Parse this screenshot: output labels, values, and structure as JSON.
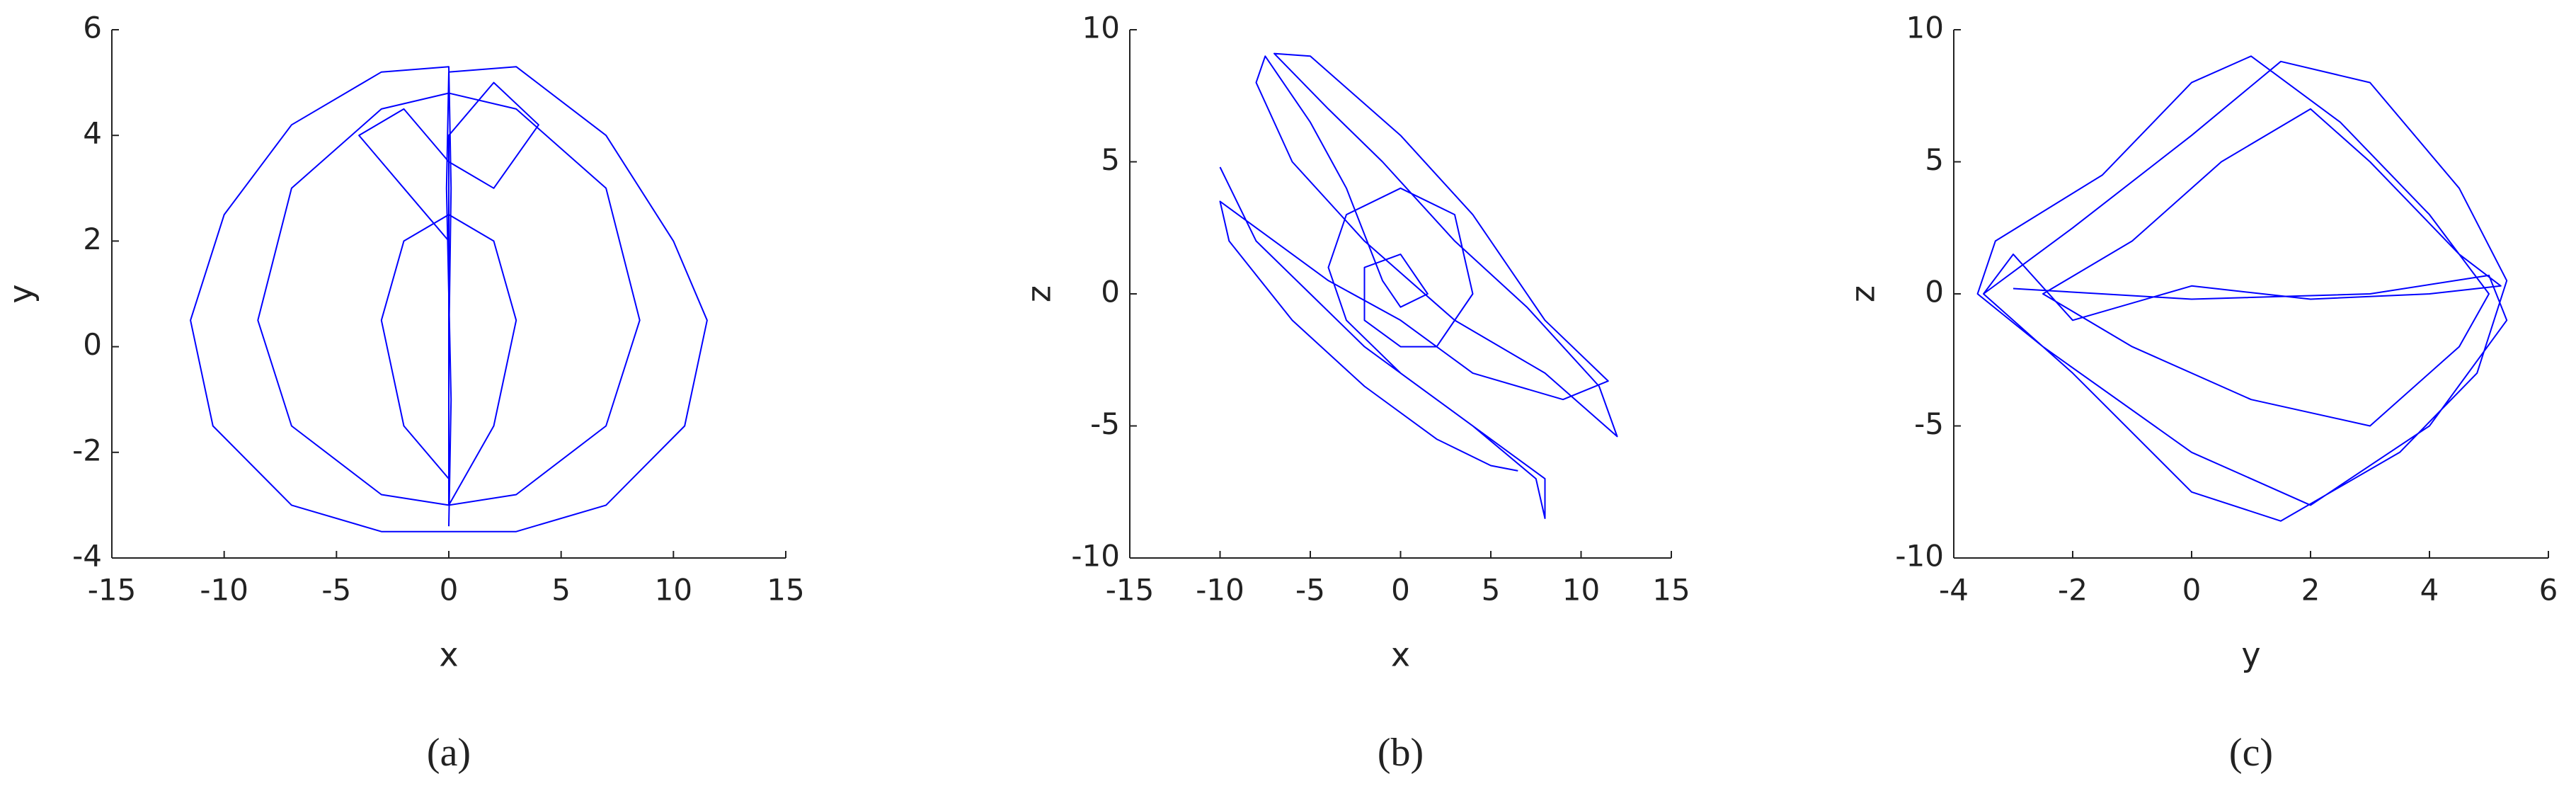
{
  "chart_data": [
    {
      "type": "line",
      "xlabel": "x",
      "ylabel": "y",
      "caption": "(a)",
      "xlim": [
        -15,
        15
      ],
      "xticks": [
        -15,
        -10,
        -5,
        0,
        5,
        10,
        15
      ],
      "ylim": [
        -4,
        6
      ],
      "yticks": [
        -4,
        -2,
        0,
        2,
        4,
        6
      ],
      "series": [
        {
          "color": "#0000ff",
          "x": [
            0,
            0.1,
            0,
            -0.1,
            0,
            3,
            7,
            10,
            11.5,
            10.5,
            7,
            3,
            0,
            -3,
            -7,
            -10.5,
            -11.5,
            -10,
            -7,
            -3,
            0,
            0.1,
            0,
            0,
            3,
            7,
            8.5,
            7,
            3,
            0,
            -3,
            -7,
            -8.5,
            -7,
            -3,
            0,
            2,
            3,
            2,
            0,
            -2,
            -3,
            -2,
            0,
            0,
            0,
            2,
            4,
            2,
            0,
            -2,
            -4,
            -2,
            0
          ],
          "values": [
            -3.4,
            -1,
            1,
            3,
            5.2,
            5.3,
            4,
            2,
            0.5,
            -1.5,
            -3,
            -3.5,
            -3.5,
            -3.5,
            -3,
            -1.5,
            0.5,
            2.5,
            4.2,
            5.2,
            5.3,
            3,
            0,
            -3,
            -2.8,
            -1.5,
            0.5,
            3,
            4.5,
            4.8,
            4.5,
            3,
            0.5,
            -1.5,
            -2.8,
            -3,
            -1.5,
            0.5,
            2,
            2.5,
            2,
            0.5,
            -1.5,
            -2.5,
            1,
            4,
            5,
            4.2,
            3,
            3.5,
            4.5,
            4,
            3,
            2
          ]
        }
      ]
    },
    {
      "type": "line",
      "xlabel": "x",
      "ylabel": "z",
      "caption": "(b)",
      "xlim": [
        -15,
        15
      ],
      "xticks": [
        -15,
        -10,
        -5,
        0,
        5,
        10,
        15
      ],
      "ylim": [
        -10,
        10
      ],
      "yticks": [
        -10,
        -5,
        0,
        5,
        10
      ],
      "series": [
        {
          "color": "#0000ff",
          "x": [
            -10,
            -8,
            -5,
            -2,
            2,
            6,
            8,
            8,
            7.5,
            4,
            0,
            -3,
            -4,
            -3,
            0,
            3,
            4,
            2,
            0,
            -2,
            -2,
            0,
            1.5,
            0,
            -1,
            -3,
            -5,
            -7.5,
            -8,
            -6,
            -2,
            3,
            8,
            12,
            11,
            7,
            3,
            -1,
            -4,
            -7,
            -5,
            0,
            4,
            8,
            11.5,
            9,
            4,
            0,
            -4,
            -10,
            -9.5,
            -6,
            -2,
            2,
            5,
            6.5
          ],
          "values": [
            4.8,
            2,
            0,
            -2,
            -4,
            -6,
            -7,
            -8.5,
            -7,
            -5,
            -3,
            -1,
            1,
            3,
            4,
            3,
            0,
            -2,
            -2,
            -1,
            1,
            1.5,
            0,
            -0.5,
            0.5,
            4,
            6.5,
            9,
            8,
            5,
            2,
            -1,
            -3,
            -5.4,
            -3.5,
            -0.5,
            2,
            5,
            7,
            9.1,
            9,
            6,
            3,
            -1,
            -3.3,
            -4,
            -3,
            -1,
            0.5,
            3.5,
            2,
            -1,
            -3.5,
            -5.5,
            -6.5,
            -6.7
          ]
        }
      ]
    },
    {
      "type": "line",
      "xlabel": "y",
      "ylabel": "z",
      "caption": "(c)",
      "xlim": [
        -4,
        6
      ],
      "xticks": [
        -4,
        -2,
        0,
        2,
        4,
        6
      ],
      "ylim": [
        -10,
        10
      ],
      "yticks": [
        -10,
        -5,
        0,
        5,
        10
      ],
      "series": [
        {
          "color": "#0000ff",
          "x": [
            -3.5,
            -2,
            0,
            1.5,
            3,
            4.5,
            5.3,
            4.8,
            3.5,
            1.5,
            0,
            -2,
            -3.5,
            -3,
            -2,
            0,
            2,
            4,
            5.2,
            4.5,
            3,
            2,
            0.5,
            -1,
            -2.5,
            -1,
            1,
            3,
            4.5,
            5,
            4,
            2.5,
            1,
            0,
            -1.5,
            -3.3,
            -3.6,
            -2.5,
            0,
            2,
            4,
            5.3,
            5,
            3,
            0,
            -3
          ],
          "values": [
            0,
            2.5,
            6,
            8.8,
            8,
            4,
            0.5,
            -3,
            -6,
            -8.6,
            -7.5,
            -3,
            0,
            1.5,
            -1,
            0.3,
            -0.2,
            0,
            0.3,
            1.5,
            5,
            7,
            5,
            2,
            0,
            -2,
            -4,
            -5,
            -2,
            0,
            3,
            6.5,
            9,
            8,
            4.5,
            2,
            0,
            -2,
            -6,
            -8,
            -5,
            -1,
            0.7,
            0,
            -0.2,
            0.2
          ]
        }
      ]
    }
  ]
}
